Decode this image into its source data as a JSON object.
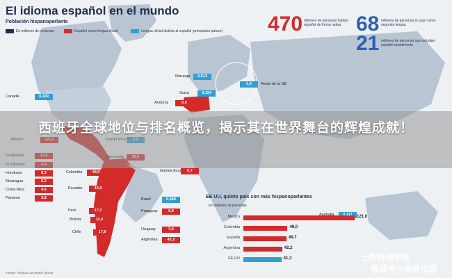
{
  "header": {
    "title": "El idioma español en el mundo",
    "subtitle": "Población hispanoparlante"
  },
  "legend": {
    "millions": "En millones de personas",
    "official": "Español como lengua oficial",
    "non_official": "Lengua oficial distinta al español (principales países)"
  },
  "stats": [
    {
      "number": "470",
      "text": "millones de personas hablan español de forma nativa",
      "color": "#d42a2a"
    },
    {
      "number": "68",
      "text": "millones de personas lo usan como segunda lengua",
      "color": "#2f5fb2"
    },
    {
      "number": "21",
      "text": "millones de personas que estudian español actualmente",
      "color": "#2f5fb2"
    }
  ],
  "map_labels": [
    {
      "name": "Canadá",
      "value": "0,439"
    },
    {
      "name": "Noruega",
      "value": "0,013"
    },
    {
      "name": "Suiza",
      "value": "0,124"
    },
    {
      "name": "Andorra",
      "value": "0,0"
    },
    {
      "name": "Resto de la UE",
      "value": "1,4"
    },
    {
      "name": "México",
      "value": "121,0"
    },
    {
      "name": "Puerto Rico",
      "value": "3,5"
    },
    {
      "name": "Guatemala",
      "value": "13,8"
    },
    {
      "name": "El Salvador",
      "value": "6,4"
    },
    {
      "name": "Honduras",
      "value": "8,3"
    },
    {
      "name": "Nicaragua",
      "value": "6,2"
    },
    {
      "name": "Costa Rica",
      "value": "4,6"
    },
    {
      "name": "Panamá",
      "value": "3,8"
    },
    {
      "name": "Colombia",
      "value": "48,0"
    },
    {
      "name": "Venezuela",
      "value": "30,6"
    },
    {
      "name": "Ecuador",
      "value": "15,9"
    },
    {
      "name": "Perú",
      "value": "17,2"
    },
    {
      "name": "Bolivia",
      "value": "11,4"
    },
    {
      "name": "Chile",
      "value": "17,9"
    },
    {
      "name": "Guinea Ecuatorial",
      "value": "0,7"
    },
    {
      "name": "Brasil",
      "value": "0,460"
    },
    {
      "name": "Paraguay",
      "value": "6,8"
    },
    {
      "name": "Uruguay",
      "value": "3,4"
    },
    {
      "name": "Argentina",
      "value": "42,2"
    },
    {
      "name": "Australia",
      "value": "0,117"
    }
  ],
  "banner": {
    "headline": "西班牙全球地位与排名概览，揭示其在世界舞台的辉煌成就！"
  },
  "chart_data": {
    "type": "bar",
    "title": "EE UU, quinto país con más hispanoparlantes",
    "subtitle": "En millones de personas",
    "categories": [
      "México",
      "Colombia",
      "España",
      "Argentina",
      "EE UU"
    ],
    "values": [
      121.0,
      48.0,
      46.7,
      42.2,
      41.3
    ],
    "value_labels": [
      "121,0",
      "48,0",
      "46,7",
      "42,2",
      "41,3"
    ],
    "colors": [
      "#d42a2a",
      "#d42a2a",
      "#d42a2a",
      "#d42a2a",
      "#2f9fd4"
    ],
    "xlim": [
      0,
      121
    ]
  },
  "source": "Fuente: Instituto Cervantes (2015)",
  "watermark": {
    "line1": "上外西语学院",
    "line2": "搜狐号@尚外出国"
  },
  "colors": {
    "red": "#d42a2a",
    "blue": "#2f9fd4",
    "navy": "#1f2f4c",
    "land": "#b9c5d3"
  }
}
